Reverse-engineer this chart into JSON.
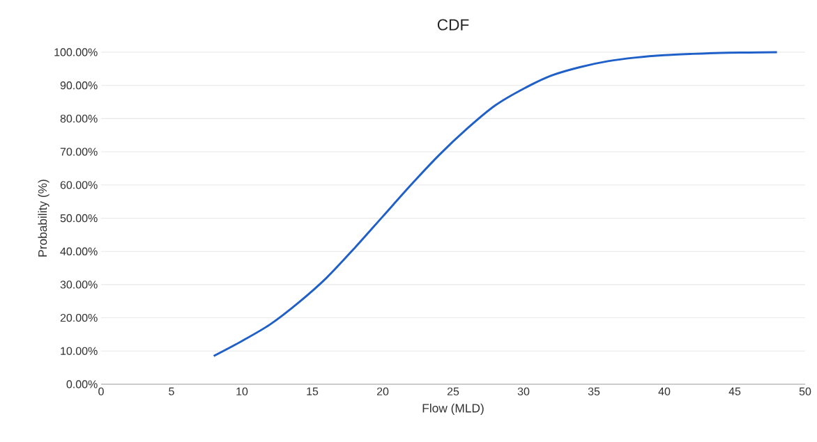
{
  "chart_data": {
    "type": "line",
    "title": "CDF",
    "xlabel": "Flow (MLD)",
    "ylabel": "Probability (%)",
    "xlim": [
      0,
      50
    ],
    "xticks": [
      0,
      5,
      10,
      15,
      20,
      25,
      30,
      35,
      40,
      45,
      50
    ],
    "ylim": [
      0,
      100
    ],
    "yticks": [
      {
        "value": 0,
        "label": "0.00%"
      },
      {
        "value": 10,
        "label": "10.00%"
      },
      {
        "value": 20,
        "label": "20.00%"
      },
      {
        "value": 30,
        "label": "30.00%"
      },
      {
        "value": 40,
        "label": "40.00%"
      },
      {
        "value": 50,
        "label": "50.00%"
      },
      {
        "value": 60,
        "label": "60.00%"
      },
      {
        "value": 70,
        "label": "70.00%"
      },
      {
        "value": 80,
        "label": "80.00%"
      },
      {
        "value": 90,
        "label": "90.00%"
      },
      {
        "value": 100,
        "label": "100.00%"
      }
    ],
    "grid": "y",
    "x": [
      8,
      10,
      12,
      14,
      16,
      18,
      20,
      22,
      24,
      26,
      28,
      30,
      32,
      34,
      36,
      38,
      40,
      42,
      44,
      46,
      48
    ],
    "series": [
      {
        "color": "#1f5fc8",
        "values": [
          8.5,
          13,
          18,
          24.5,
          32,
          41,
          50.5,
          60,
          69,
          77,
          84,
          89,
          93,
          95.5,
          97.3,
          98.4,
          99.1,
          99.5,
          99.8,
          99.9,
          100
        ]
      }
    ]
  }
}
